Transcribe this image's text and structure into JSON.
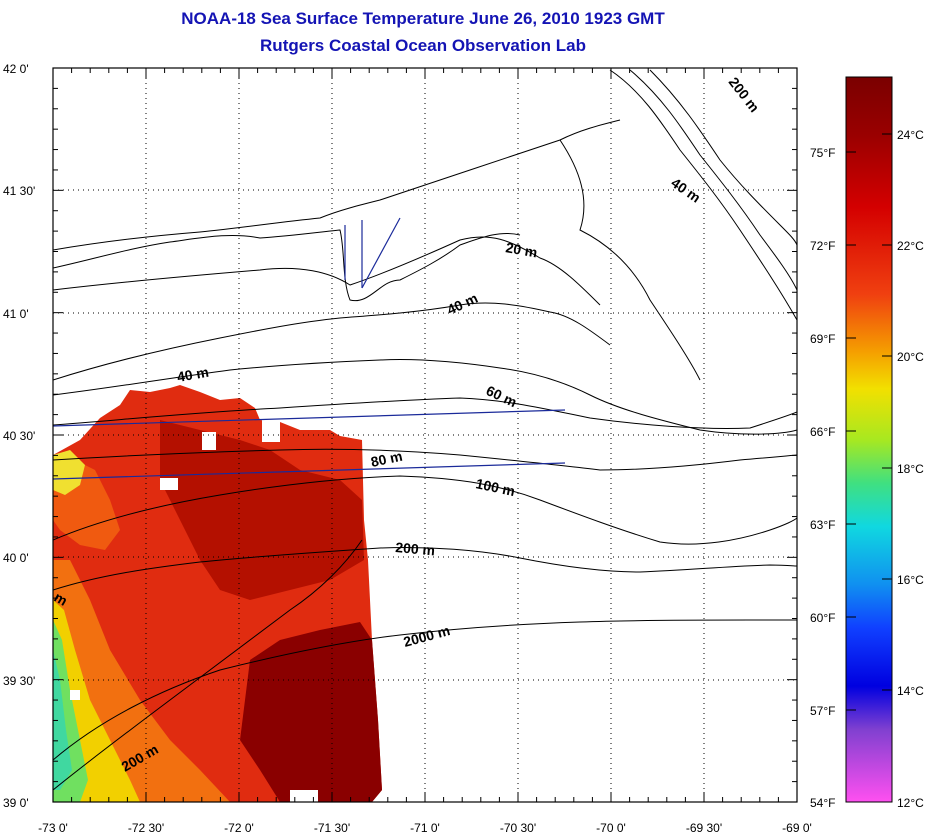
{
  "header": {
    "title_line_1": "NOAA-18 Sea Surface Temperature June 26, 2010 1923 GMT",
    "title_line_2": "Rutgers Coastal Ocean Observation Lab"
  },
  "map": {
    "x_ticks": [
      "-73 0'",
      "-72 30'",
      "-72 0'",
      "-71 30'",
      "-71 0'",
      "-70 30'",
      "-70 0'",
      "-69 30'",
      "-69 0'"
    ],
    "y_ticks": [
      "42 0'",
      "41 30'",
      "41 0'",
      "40 30'",
      "40 0'",
      "39 30'",
      "39 0'"
    ],
    "lon_range": [
      -73,
      -69
    ],
    "lat_range": [
      39,
      42
    ],
    "grid": "dotted",
    "contour_labels": [
      "200 m",
      "40 m",
      "20 m",
      "40 m",
      "40 m",
      "60 m",
      "80 m",
      "100 m",
      "200 m",
      "2000 m",
      "200 m",
      "m"
    ]
  },
  "colorbar": {
    "fahrenheit_labels": [
      "75°F",
      "72°F",
      "69°F",
      "66°F",
      "63°F",
      "60°F",
      "57°F",
      "54°F"
    ],
    "celsius_labels": [
      "24°C",
      "22°C",
      "20°C",
      "18°C",
      "16°C",
      "14°C",
      "12°C"
    ],
    "colors": [
      "#7a0000",
      "#b80000",
      "#e62010",
      "#f26010",
      "#f5a000",
      "#f2e000",
      "#a8e820",
      "#40e080",
      "#10d8e0",
      "#1090f0",
      "#1040ff",
      "#0000e0",
      "#8040d0",
      "#e040e0",
      "#ff60f0"
    ]
  }
}
